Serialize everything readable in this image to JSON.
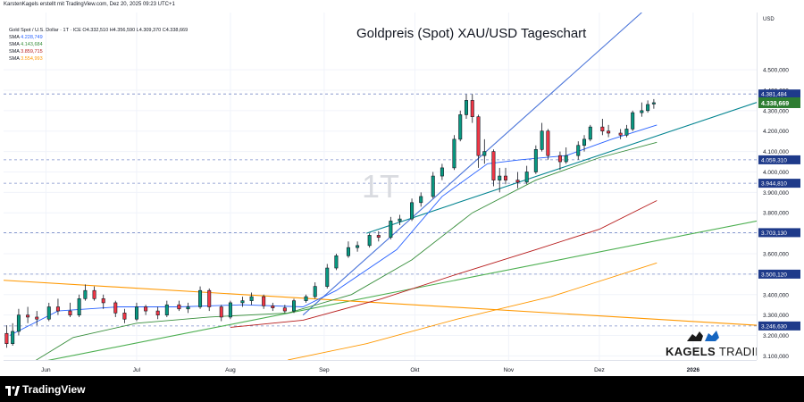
{
  "header": {
    "publisher_line": "KarstenKagels erstellt mit TradingView.com, Dez 20, 2025 09:23 UTC+1",
    "symbol_line": "Gold Spot / U.S. Dollar · 1T · ICE   O4.332,510  H4.356,590  L4.309,370  C4.338,669"
  },
  "legend": [
    {
      "label": "SMA",
      "value": "4.228,749",
      "color": "#2962ff"
    },
    {
      "label": "SMA",
      "value": "4.143,684",
      "color": "#388e3c"
    },
    {
      "label": "SMA",
      "value": "3.859,715",
      "color": "#b71c1c"
    },
    {
      "label": "SMA",
      "value": "3.554,993",
      "color": "#ff9800"
    }
  ],
  "title": "Goldpreis (Spot) XAU/USD Tageschart",
  "watermark": "1T",
  "brand": {
    "kagels": "KAGELS",
    "trading": "TRADING"
  },
  "footer": {
    "brand": "TradingView"
  },
  "colors": {
    "up": "#089981",
    "down": "#f23645",
    "candle": "#131722",
    "accent_green": "#2e7d32"
  },
  "chart_data": {
    "type": "candlestick",
    "title": "Goldpreis (Spot) XAU/USD Tageschart",
    "y_unit": "USD",
    "y_range": [
      3080,
      4780
    ],
    "x_range": [
      "2025-05-18",
      "2026-01-22"
    ],
    "x_ticks": [
      {
        "label": "Jun",
        "date": "2025-06-01"
      },
      {
        "label": "Jul",
        "date": "2025-07-01"
      },
      {
        "label": "Aug",
        "date": "2025-08-01"
      },
      {
        "label": "Sep",
        "date": "2025-09-01"
      },
      {
        "label": "Okt",
        "date": "2025-10-01"
      },
      {
        "label": "Nov",
        "date": "2025-11-01"
      },
      {
        "label": "Dez",
        "date": "2025-12-01"
      },
      {
        "label": "2026",
        "date": "2026-01-01"
      }
    ],
    "y_ticks": [
      "4.500,000",
      "4.400,000",
      "4.300,000",
      "4.200,000",
      "4.100,000",
      "4.000,000",
      "3.900,000",
      "3.800,000",
      "3.700,000",
      "3.600,000",
      "3.500,000",
      "3.400,000",
      "3.300,000",
      "3.200,000",
      "3.100,000"
    ],
    "y_tick_values": [
      4500,
      4400,
      4300,
      4200,
      4100,
      4000,
      3900,
      3800,
      3700,
      3600,
      3500,
      3400,
      3300,
      3200,
      3100
    ],
    "currency_label": "USD",
    "last_price": {
      "value": 4338.669,
      "label": "4.338,669"
    },
    "horizontal_levels": [
      {
        "value": 4381.484,
        "label": "4.381,484"
      },
      {
        "value": 4059.31,
        "label": "4.059,310"
      },
      {
        "value": 3944.81,
        "label": "3.944,810"
      },
      {
        "value": 3703.13,
        "label": "3.703,130"
      },
      {
        "value": 3500.12,
        "label": "3.500,120"
      },
      {
        "value": 3246.63,
        "label": "3.246,630"
      }
    ],
    "trendlines": [
      {
        "name": "teal support",
        "color": "#00838f",
        "from": {
          "date": "2025-09-15",
          "price": 3700
        },
        "to": {
          "date": "2026-01-22",
          "price": 4340
        }
      },
      {
        "name": "blue upper",
        "color": "#4a74d9",
        "from": {
          "date": "2025-08-25",
          "price": 3300
        },
        "to": {
          "date": "2025-12-15",
          "price": 4780
        }
      },
      {
        "name": "green long-term",
        "color": "#4caf50",
        "from": {
          "date": "2025-05-23",
          "price": 3050
        },
        "to": {
          "date": "2026-01-22",
          "price": 3760
        }
      },
      {
        "name": "orange falling",
        "color": "#ff9800",
        "from": {
          "date": "2025-05-18",
          "price": 3470
        },
        "to": {
          "date": "2026-01-22",
          "price": 3250
        }
      }
    ],
    "sma_lines": [
      {
        "period_label": "SMA",
        "color": "#2962ff",
        "points": [
          [
            "2025-05-20",
            3200
          ],
          [
            "2025-06-05",
            3320
          ],
          [
            "2025-06-25",
            3340
          ],
          [
            "2025-07-15",
            3340
          ],
          [
            "2025-08-05",
            3350
          ],
          [
            "2025-08-25",
            3340
          ],
          [
            "2025-09-05",
            3420
          ],
          [
            "2025-09-25",
            3620
          ],
          [
            "2025-10-10",
            3880
          ],
          [
            "2025-10-25",
            4040
          ],
          [
            "2025-11-05",
            4060
          ],
          [
            "2025-11-20",
            4080
          ],
          [
            "2025-12-05",
            4160
          ],
          [
            "2025-12-20",
            4230
          ]
        ]
      },
      {
        "period_label": "SMA",
        "color": "#388e3c",
        "points": [
          [
            "2025-05-20",
            3000
          ],
          [
            "2025-06-10",
            3190
          ],
          [
            "2025-07-01",
            3260
          ],
          [
            "2025-07-25",
            3290
          ],
          [
            "2025-08-20",
            3310
          ],
          [
            "2025-09-10",
            3400
          ],
          [
            "2025-09-30",
            3570
          ],
          [
            "2025-10-20",
            3800
          ],
          [
            "2025-11-10",
            3960
          ],
          [
            "2025-12-01",
            4070
          ],
          [
            "2025-12-20",
            4145
          ]
        ]
      },
      {
        "period_label": "SMA",
        "color": "#b71c1c",
        "points": [
          [
            "2025-08-01",
            3240
          ],
          [
            "2025-08-25",
            3275
          ],
          [
            "2025-09-20",
            3380
          ],
          [
            "2025-10-15",
            3500
          ],
          [
            "2025-11-10",
            3620
          ],
          [
            "2025-12-01",
            3720
          ],
          [
            "2025-12-20",
            3860
          ]
        ]
      },
      {
        "period_label": "SMA",
        "color": "#ff9800",
        "points": [
          [
            "2025-08-20",
            3080
          ],
          [
            "2025-09-15",
            3160
          ],
          [
            "2025-10-15",
            3280
          ],
          [
            "2025-11-15",
            3390
          ],
          [
            "2025-12-20",
            3555
          ]
        ]
      }
    ],
    "candles": [
      {
        "date": "2025-05-19",
        "o": 3210,
        "h": 3250,
        "l": 3140,
        "c": 3160
      },
      {
        "date": "2025-05-21",
        "o": 3160,
        "h": 3260,
        "l": 3150,
        "c": 3220
      },
      {
        "date": "2025-05-23",
        "o": 3220,
        "h": 3330,
        "l": 3200,
        "c": 3300
      },
      {
        "date": "2025-05-26",
        "o": 3300,
        "h": 3340,
        "l": 3260,
        "c": 3290
      },
      {
        "date": "2025-05-29",
        "o": 3290,
        "h": 3320,
        "l": 3250,
        "c": 3280
      },
      {
        "date": "2025-06-02",
        "o": 3280,
        "h": 3360,
        "l": 3270,
        "c": 3340
      },
      {
        "date": "2025-06-05",
        "o": 3340,
        "h": 3380,
        "l": 3300,
        "c": 3320
      },
      {
        "date": "2025-06-09",
        "o": 3320,
        "h": 3360,
        "l": 3290,
        "c": 3300
      },
      {
        "date": "2025-06-12",
        "o": 3300,
        "h": 3400,
        "l": 3290,
        "c": 3380
      },
      {
        "date": "2025-06-14",
        "o": 3380,
        "h": 3450,
        "l": 3370,
        "c": 3420
      },
      {
        "date": "2025-06-17",
        "o": 3420,
        "h": 3440,
        "l": 3370,
        "c": 3380
      },
      {
        "date": "2025-06-20",
        "o": 3380,
        "h": 3400,
        "l": 3330,
        "c": 3360
      },
      {
        "date": "2025-06-24",
        "o": 3360,
        "h": 3370,
        "l": 3290,
        "c": 3310
      },
      {
        "date": "2025-06-27",
        "o": 3310,
        "h": 3330,
        "l": 3260,
        "c": 3280
      },
      {
        "date": "2025-07-01",
        "o": 3280,
        "h": 3360,
        "l": 3270,
        "c": 3340
      },
      {
        "date": "2025-07-04",
        "o": 3340,
        "h": 3350,
        "l": 3300,
        "c": 3320
      },
      {
        "date": "2025-07-08",
        "o": 3320,
        "h": 3340,
        "l": 3280,
        "c": 3300
      },
      {
        "date": "2025-07-11",
        "o": 3300,
        "h": 3370,
        "l": 3290,
        "c": 3350
      },
      {
        "date": "2025-07-15",
        "o": 3350,
        "h": 3370,
        "l": 3320,
        "c": 3330
      },
      {
        "date": "2025-07-18",
        "o": 3330,
        "h": 3360,
        "l": 3310,
        "c": 3340
      },
      {
        "date": "2025-07-22",
        "o": 3340,
        "h": 3440,
        "l": 3330,
        "c": 3420
      },
      {
        "date": "2025-07-25",
        "o": 3420,
        "h": 3430,
        "l": 3320,
        "c": 3340
      },
      {
        "date": "2025-07-29",
        "o": 3340,
        "h": 3350,
        "l": 3270,
        "c": 3290
      },
      {
        "date": "2025-08-01",
        "o": 3290,
        "h": 3370,
        "l": 3280,
        "c": 3360
      },
      {
        "date": "2025-08-05",
        "o": 3360,
        "h": 3390,
        "l": 3340,
        "c": 3370
      },
      {
        "date": "2025-08-08",
        "o": 3370,
        "h": 3410,
        "l": 3350,
        "c": 3390
      },
      {
        "date": "2025-08-12",
        "o": 3390,
        "h": 3400,
        "l": 3330,
        "c": 3345
      },
      {
        "date": "2025-08-15",
        "o": 3345,
        "h": 3360,
        "l": 3320,
        "c": 3335
      },
      {
        "date": "2025-08-19",
        "o": 3335,
        "h": 3350,
        "l": 3310,
        "c": 3320
      },
      {
        "date": "2025-08-22",
        "o": 3320,
        "h": 3380,
        "l": 3310,
        "c": 3370
      },
      {
        "date": "2025-08-26",
        "o": 3370,
        "h": 3400,
        "l": 3360,
        "c": 3390
      },
      {
        "date": "2025-08-29",
        "o": 3390,
        "h": 3460,
        "l": 3380,
        "c": 3440
      },
      {
        "date": "2025-09-02",
        "o": 3440,
        "h": 3550,
        "l": 3430,
        "c": 3530
      },
      {
        "date": "2025-09-05",
        "o": 3530,
        "h": 3600,
        "l": 3520,
        "c": 3590
      },
      {
        "date": "2025-09-09",
        "o": 3590,
        "h": 3660,
        "l": 3580,
        "c": 3630
      },
      {
        "date": "2025-09-12",
        "o": 3630,
        "h": 3660,
        "l": 3610,
        "c": 3640
      },
      {
        "date": "2025-09-16",
        "o": 3640,
        "h": 3700,
        "l": 3630,
        "c": 3690
      },
      {
        "date": "2025-09-19",
        "o": 3690,
        "h": 3710,
        "l": 3660,
        "c": 3680
      },
      {
        "date": "2025-09-23",
        "o": 3680,
        "h": 3780,
        "l": 3670,
        "c": 3760
      },
      {
        "date": "2025-09-26",
        "o": 3760,
        "h": 3790,
        "l": 3740,
        "c": 3770
      },
      {
        "date": "2025-09-30",
        "o": 3770,
        "h": 3870,
        "l": 3760,
        "c": 3850
      },
      {
        "date": "2025-10-03",
        "o": 3850,
        "h": 3900,
        "l": 3830,
        "c": 3880
      },
      {
        "date": "2025-10-07",
        "o": 3880,
        "h": 4000,
        "l": 3870,
        "c": 3980
      },
      {
        "date": "2025-10-10",
        "o": 3980,
        "h": 4040,
        "l": 3960,
        "c": 4020
      },
      {
        "date": "2025-10-14",
        "o": 4020,
        "h": 4180,
        "l": 4010,
        "c": 4160
      },
      {
        "date": "2025-10-16",
        "o": 4160,
        "h": 4300,
        "l": 4150,
        "c": 4280
      },
      {
        "date": "2025-10-18",
        "o": 4280,
        "h": 4380,
        "l": 4260,
        "c": 4350
      },
      {
        "date": "2025-10-20",
        "o": 4350,
        "h": 4381,
        "l": 4240,
        "c": 4270
      },
      {
        "date": "2025-10-22",
        "o": 4270,
        "h": 4280,
        "l": 4020,
        "c": 4080
      },
      {
        "date": "2025-10-24",
        "o": 4080,
        "h": 4160,
        "l": 4040,
        "c": 4100
      },
      {
        "date": "2025-10-27",
        "o": 4100,
        "h": 4110,
        "l": 3930,
        "c": 3960
      },
      {
        "date": "2025-10-29",
        "o": 3960,
        "h": 4020,
        "l": 3900,
        "c": 3980
      },
      {
        "date": "2025-10-31",
        "o": 3980,
        "h": 4020,
        "l": 3940,
        "c": 3960
      },
      {
        "date": "2025-11-04",
        "o": 3960,
        "h": 4000,
        "l": 3920,
        "c": 3950
      },
      {
        "date": "2025-11-07",
        "o": 3950,
        "h": 4030,
        "l": 3940,
        "c": 4000
      },
      {
        "date": "2025-11-10",
        "o": 4000,
        "h": 4130,
        "l": 3990,
        "c": 4110
      },
      {
        "date": "2025-11-12",
        "o": 4110,
        "h": 4240,
        "l": 4100,
        "c": 4200
      },
      {
        "date": "2025-11-14",
        "o": 4200,
        "h": 4210,
        "l": 4060,
        "c": 4080
      },
      {
        "date": "2025-11-18",
        "o": 4080,
        "h": 4100,
        "l": 4010,
        "c": 4050
      },
      {
        "date": "2025-11-20",
        "o": 4050,
        "h": 4120,
        "l": 4040,
        "c": 4080
      },
      {
        "date": "2025-11-24",
        "o": 4080,
        "h": 4150,
        "l": 4060,
        "c": 4130
      },
      {
        "date": "2025-11-26",
        "o": 4130,
        "h": 4180,
        "l": 4100,
        "c": 4160
      },
      {
        "date": "2025-11-28",
        "o": 4160,
        "h": 4230,
        "l": 4150,
        "c": 4220
      },
      {
        "date": "2025-12-02",
        "o": 4220,
        "h": 4260,
        "l": 4180,
        "c": 4200
      },
      {
        "date": "2025-12-04",
        "o": 4200,
        "h": 4230,
        "l": 4170,
        "c": 4190
      },
      {
        "date": "2025-12-08",
        "o": 4190,
        "h": 4210,
        "l": 4160,
        "c": 4180
      },
      {
        "date": "2025-12-10",
        "o": 4180,
        "h": 4230,
        "l": 4170,
        "c": 4210
      },
      {
        "date": "2025-12-12",
        "o": 4210,
        "h": 4300,
        "l": 4200,
        "c": 4290
      },
      {
        "date": "2025-12-15",
        "o": 4290,
        "h": 4340,
        "l": 4270,
        "c": 4300
      },
      {
        "date": "2025-12-17",
        "o": 4300,
        "h": 4350,
        "l": 4290,
        "c": 4330
      },
      {
        "date": "2025-12-19",
        "o": 4332.51,
        "h": 4356.59,
        "l": 4309.37,
        "c": 4338.669
      }
    ]
  }
}
